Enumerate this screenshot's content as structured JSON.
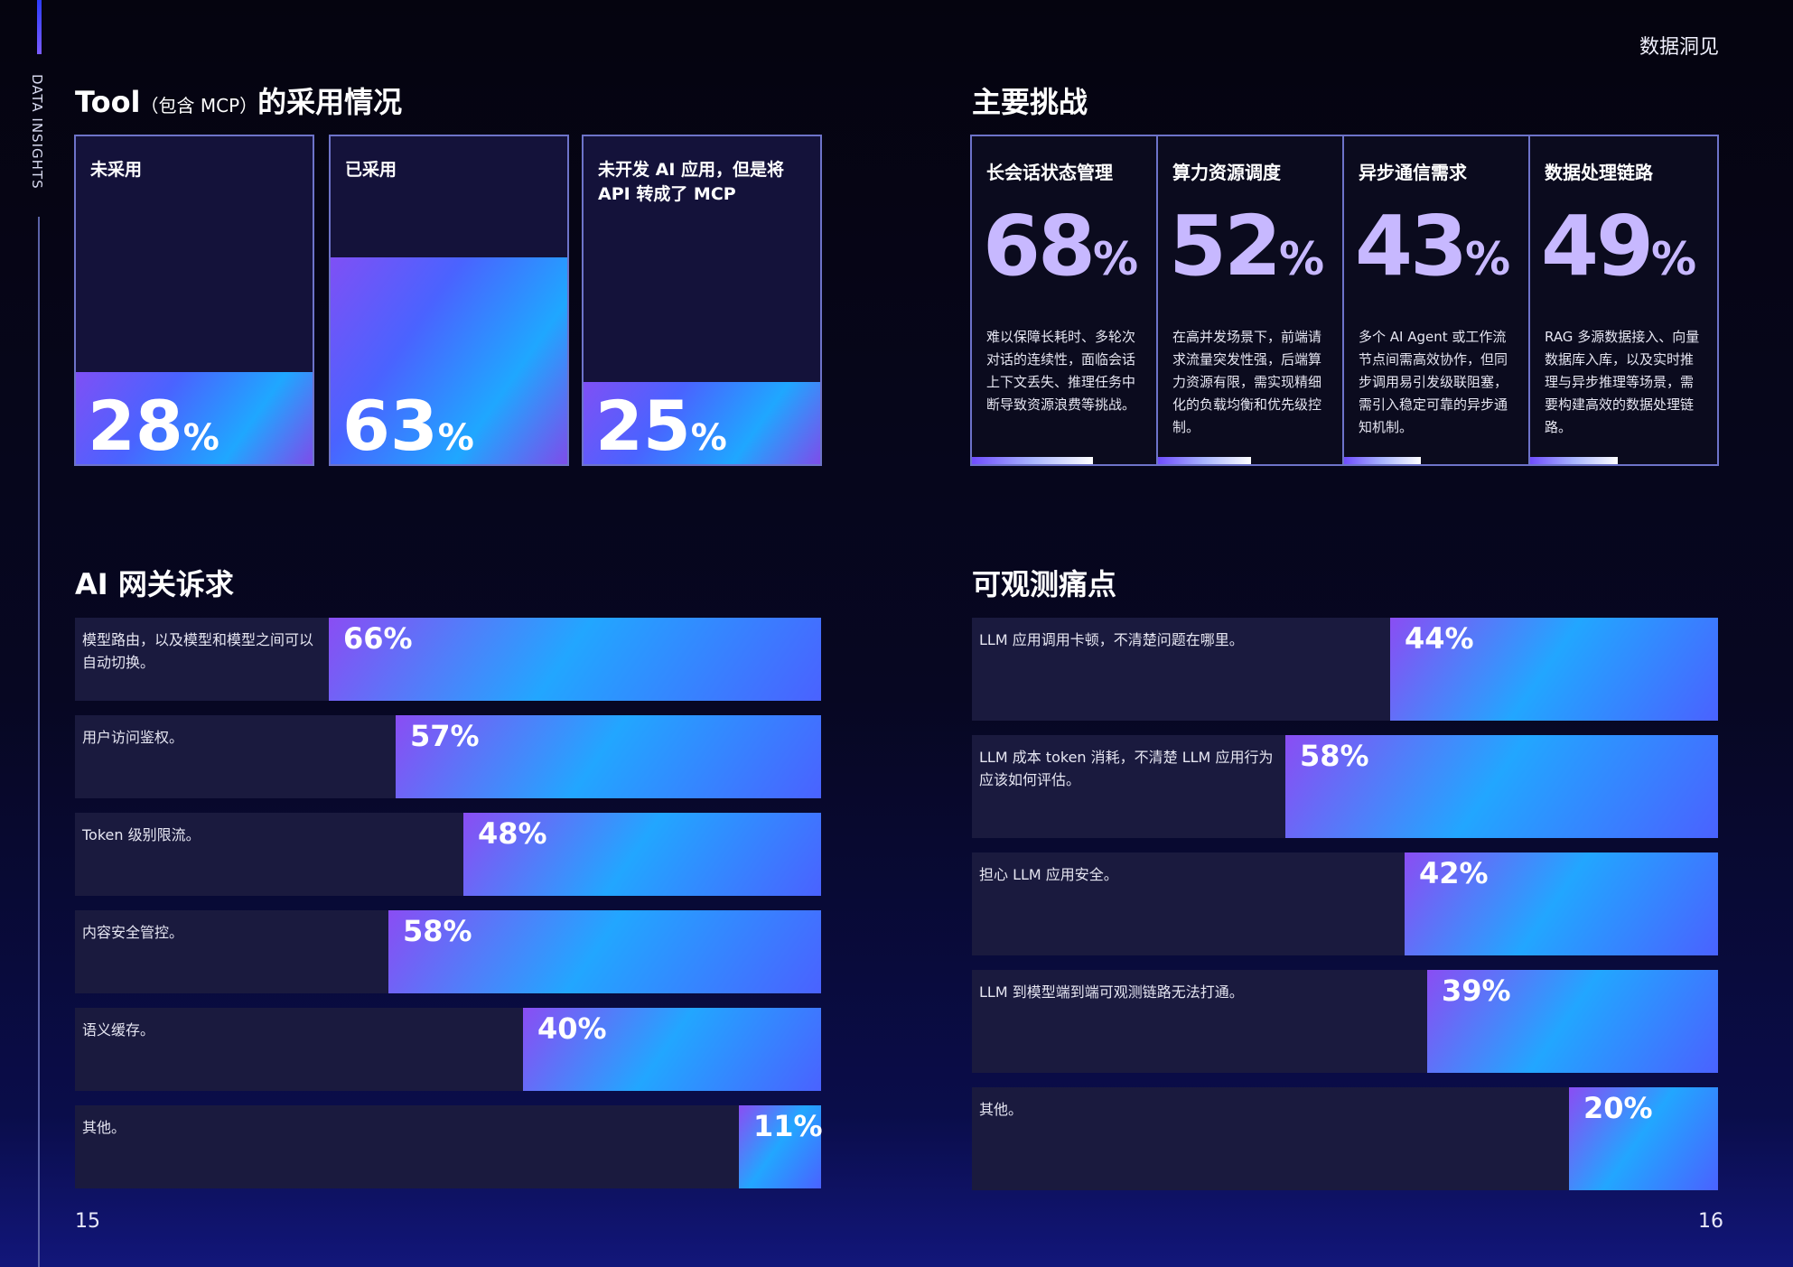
{
  "side_label": "DATA INSIGHTS",
  "brand": "数据洞见",
  "page_left": "15",
  "page_right": "16",
  "sections": {
    "tool_title": "Tool",
    "tool_title_small": "（包含 MCP）",
    "tool_title_tail": "的采用情况",
    "challenges_title": "主要挑战",
    "gateway_title": "AI 网关诉求",
    "observability_title": "可观测痛点"
  },
  "percent_sign": "%",
  "chart_data": [
    {
      "type": "bar",
      "title": "Tool（包含 MCP）的采用情况",
      "categories": [
        "未采用",
        "已采用",
        "未开发 AI 应用，但是将 API 转成了 MCP"
      ],
      "values": [
        28,
        63,
        25
      ],
      "unit": "%",
      "ylim": [
        0,
        100
      ]
    },
    {
      "type": "bar",
      "title": "主要挑战",
      "categories": [
        "长会话状态管理",
        "算力资源调度",
        "异步通信需求",
        "数据处理链路"
      ],
      "values": [
        68,
        52,
        43,
        49
      ],
      "unit": "%",
      "descriptions": [
        "难以保障长耗时、多轮次对话的连续性，面临会话上下文丢失、推理任务中断导致资源浪费等挑战。",
        "在高并发场景下，前端请求流量突发性强，后端算力资源有限，需实现精细化的负载均衡和优先级控制。",
        "多个 AI Agent 或工作流节点间需高效协作，但同步调用易引发级联阻塞，需引入稳定可靠的异步通知机制。",
        "RAG 多源数据接入、向量数据库入库，以及实时推理与异步推理等场景，需要构建高效的数据处理链路。"
      ]
    },
    {
      "type": "bar",
      "title": "AI 网关诉求",
      "categories": [
        "模型路由，以及模型和模型之间可以自动切换。",
        "用户访问鉴权。",
        "Token 级别限流。",
        "内容安全管控。",
        "语义缓存。",
        "其他。"
      ],
      "values": [
        66,
        57,
        48,
        58,
        40,
        11
      ],
      "unit": "%",
      "xlim": [
        0,
        100
      ]
    },
    {
      "type": "bar",
      "title": "可观测痛点",
      "categories": [
        "LLM 应用调用卡顿，不清楚问题在哪里。",
        "LLM 成本 token 消耗，不清楚 LLM 应用行为应该如何评估。",
        "担心 LLM 应用安全。",
        "LLM 到模型端到端可观测链路无法打通。",
        "其他。"
      ],
      "values": [
        44,
        58,
        42,
        39,
        20
      ],
      "unit": "%",
      "xlim": [
        0,
        100
      ]
    }
  ]
}
